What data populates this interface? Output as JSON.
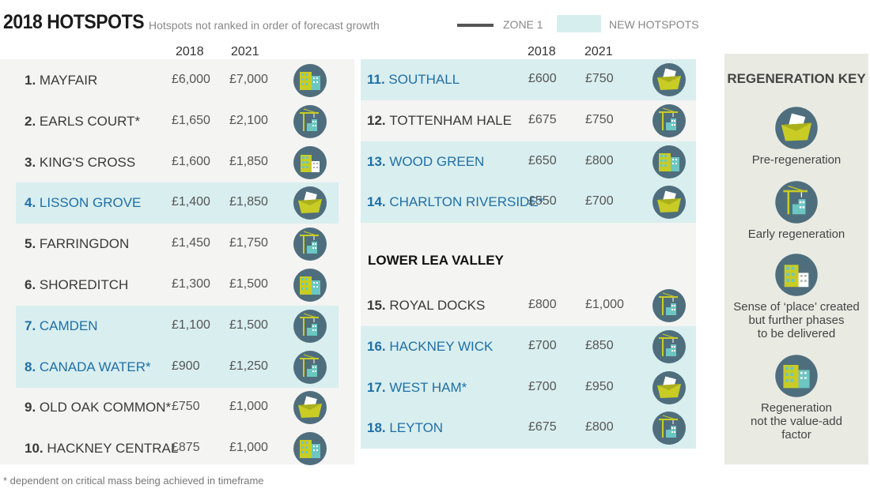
{
  "header": {
    "title": "2018 HOTSPOTS",
    "subtitle": "Hotspots not ranked in order of forecast growth",
    "legend_zone1": "ZONE 1",
    "legend_new": "NEW HOTSPOTS"
  },
  "columns": {
    "y2018": "2018",
    "y2021": "2021"
  },
  "colors": {
    "new_bg": "#d9eeef",
    "panel_bg": "#f4f4f2",
    "key_bg": "#e9ebe3",
    "link_blue": "#1f6fa6",
    "icon_circle": "#4f6e7d",
    "icon_yellow": "#c8cc24",
    "icon_teal": "#6cc6c2"
  },
  "left_rows": [
    {
      "num": "1.",
      "name": "MAYFAIR",
      "v2018": "£6,000",
      "v2021": "£7,000",
      "new": false,
      "icon": "building-icon"
    },
    {
      "num": "2.",
      "name": "EARLS COURT*",
      "v2018": "£1,650",
      "v2021": "£2,100",
      "new": false,
      "icon": "crane-icon"
    },
    {
      "num": "3.",
      "name": "KING'S CROSS",
      "v2018": "£1,600",
      "v2021": "£1,850",
      "new": false,
      "icon": "place-icon"
    },
    {
      "num": "4.",
      "name": "LISSON GROVE",
      "v2018": "£1,400",
      "v2021": "£1,850",
      "new": true,
      "icon": "plan-icon"
    },
    {
      "num": "5.",
      "name": "FARRINGDON",
      "v2018": "£1,450",
      "v2021": "£1,750",
      "new": false,
      "icon": "crane-icon"
    },
    {
      "num": "6.",
      "name": "SHOREDITCH",
      "v2018": "£1,300",
      "v2021": "£1,500",
      "new": false,
      "icon": "building-icon"
    },
    {
      "num": "7.",
      "name": "CAMDEN",
      "v2018": "£1,100",
      "v2021": "£1,500",
      "new": true,
      "icon": "crane-icon"
    },
    {
      "num": "8.",
      "name": "CANADA WATER*",
      "v2018": "£900",
      "v2021": "£1,250",
      "new": true,
      "icon": "crane-icon"
    },
    {
      "num": "9.",
      "name": "OLD OAK COMMON*",
      "v2018": "£750",
      "v2021": "£1,000",
      "new": false,
      "icon": "plan-icon"
    },
    {
      "num": "10.",
      "name": "HACKNEY CENTRAL",
      "v2018": "£875",
      "v2021": "£1,000",
      "new": false,
      "icon": "building-icon"
    }
  ],
  "right_rows": [
    {
      "num": "11.",
      "name": "SOUTHALL",
      "v2018": "£600",
      "v2021": "£750",
      "new": true,
      "icon": "plan-icon"
    },
    {
      "num": "12.",
      "name": "TOTTENHAM HALE",
      "v2018": "£675",
      "v2021": "£750",
      "new": false,
      "icon": "crane-icon"
    },
    {
      "num": "13.",
      "name": "WOOD GREEN",
      "v2018": "£650",
      "v2021": "£800",
      "new": true,
      "icon": "building-icon"
    },
    {
      "num": "14.",
      "name": "CHARLTON RIVERSIDE*",
      "v2018": "£550",
      "v2021": "£700",
      "new": true,
      "icon": "plan-icon"
    }
  ],
  "lower_title": "LOWER LEA VALLEY",
  "lower_rows": [
    {
      "num": "15.",
      "name": "ROYAL DOCKS",
      "v2018": "£800",
      "v2021": "£1,000",
      "new": false,
      "icon": "crane-icon"
    },
    {
      "num": "16.",
      "name": "HACKNEY WICK",
      "v2018": "£700",
      "v2021": "£850",
      "new": true,
      "icon": "crane-icon"
    },
    {
      "num": "17.",
      "name": "WEST HAM*",
      "v2018": "£700",
      "v2021": "£950",
      "new": true,
      "icon": "plan-icon"
    },
    {
      "num": "18.",
      "name": "LEYTON",
      "v2018": "£675",
      "v2021": "£800",
      "new": true,
      "icon": "crane-icon"
    }
  ],
  "key": {
    "title": "REGENERATION KEY",
    "items": [
      {
        "icon": "plan-icon",
        "label": "Pre-regeneration"
      },
      {
        "icon": "crane-icon",
        "label": "Early regeneration"
      },
      {
        "icon": "place-icon",
        "label": "Sense of ‘place’ created\nbut further phases\nto be delivered"
      },
      {
        "icon": "building-icon",
        "label": "Regeneration\nnot the value-add\nfactor"
      }
    ]
  },
  "footnote": "* dependent on critical mass being achieved in timeframe"
}
